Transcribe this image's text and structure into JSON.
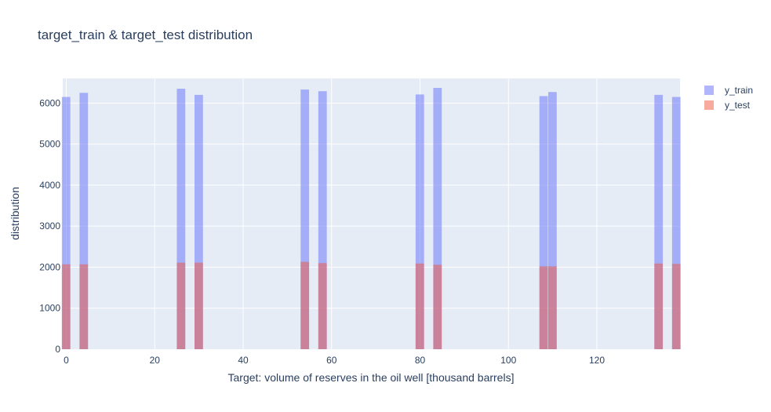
{
  "chart_data": {
    "type": "bar",
    "barmode": "overlay",
    "title": "target_train & target_test distribution",
    "xlabel": "Target: volume of reserves in the oil well [thousand barrels]",
    "ylabel": "distribution",
    "xlim": [
      -0.8,
      138.8
    ],
    "ylim": [
      0,
      6600
    ],
    "x_ticks": [
      0,
      20,
      40,
      60,
      80,
      100,
      120
    ],
    "y_ticks": [
      0,
      1000,
      2000,
      3000,
      4000,
      5000,
      6000
    ],
    "bin_width": 2,
    "grid": true,
    "legend_position": "top-right",
    "series": [
      {
        "name": "y_train",
        "color": "#636efa",
        "bins": [
          {
            "x": 0.0,
            "value": 6150
          },
          {
            "x": 4.0,
            "value": 6250
          },
          {
            "x": 26.0,
            "value": 6350
          },
          {
            "x": 30.0,
            "value": 6200
          },
          {
            "x": 54.0,
            "value": 6330
          },
          {
            "x": 58.0,
            "value": 6290
          },
          {
            "x": 80.0,
            "value": 6210
          },
          {
            "x": 84.0,
            "value": 6370
          },
          {
            "x": 108.0,
            "value": 6170
          },
          {
            "x": 110.0,
            "value": 6270
          },
          {
            "x": 134.0,
            "value": 6200
          },
          {
            "x": 138.0,
            "value": 6150
          }
        ]
      },
      {
        "name": "y_test",
        "color": "#ef553b",
        "bins": [
          {
            "x": 0.0,
            "value": 2070
          },
          {
            "x": 4.0,
            "value": 2070
          },
          {
            "x": 26.0,
            "value": 2110
          },
          {
            "x": 30.0,
            "value": 2110
          },
          {
            "x": 54.0,
            "value": 2130
          },
          {
            "x": 58.0,
            "value": 2100
          },
          {
            "x": 80.0,
            "value": 2090
          },
          {
            "x": 84.0,
            "value": 2060
          },
          {
            "x": 108.0,
            "value": 2020
          },
          {
            "x": 110.0,
            "value": 2020
          },
          {
            "x": 134.0,
            "value": 2090
          },
          {
            "x": 138.0,
            "value": 2080
          }
        ]
      }
    ]
  }
}
